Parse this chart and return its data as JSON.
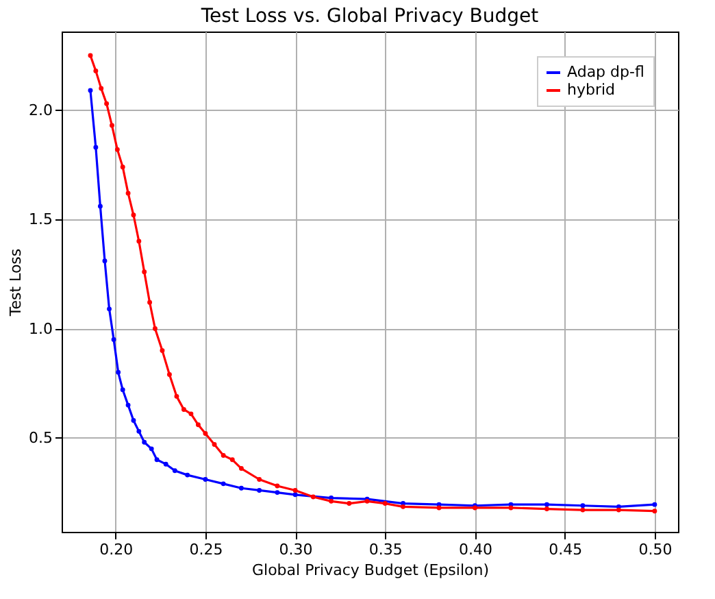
{
  "chart_data": {
    "type": "line",
    "title": "Test Loss vs. Global Privacy Budget",
    "xlabel": "Global Privacy Budget (Epsilon)",
    "ylabel": "Test Loss",
    "xlim": [
      0.17,
      0.513
    ],
    "xticks": [
      {
        "value": 0.2,
        "label": "0.20"
      },
      {
        "value": 0.25,
        "label": "0.25"
      },
      {
        "value": 0.3,
        "label": "0.30"
      },
      {
        "value": 0.35,
        "label": "0.35"
      },
      {
        "value": 0.4,
        "label": "0.40"
      },
      {
        "value": 0.45,
        "label": "0.45"
      },
      {
        "value": 0.5,
        "label": "0.50"
      }
    ],
    "ylim": [
      0.07,
      2.36
    ],
    "yticks": [
      {
        "value": 0.5,
        "label": "0.5"
      },
      {
        "value": 1,
        "label": "1.0"
      },
      {
        "value": 1.5,
        "label": "1.5"
      },
      {
        "value": 2,
        "label": "2.0"
      }
    ],
    "grid": true,
    "legend": "top right",
    "marker": "circle",
    "line_style": "solid",
    "series": [
      {
        "name": "Adap dp-fl",
        "color": "#0000ff",
        "x": [
          0.186,
          0.189,
          0.1915,
          0.194,
          0.1965,
          0.199,
          0.2015,
          0.204,
          0.207,
          0.21,
          0.213,
          0.216,
          0.22,
          0.223,
          0.228,
          0.233,
          0.24,
          0.25,
          0.26,
          0.27,
          0.28,
          0.29,
          0.3,
          0.32,
          0.34,
          0.36,
          0.38,
          0.4,
          0.42,
          0.44,
          0.46,
          0.48,
          0.5
        ],
        "values": [
          2.09,
          1.83,
          1.56,
          1.31,
          1.09,
          0.95,
          0.8,
          0.72,
          0.65,
          0.58,
          0.53,
          0.48,
          0.45,
          0.4,
          0.38,
          0.35,
          0.33,
          0.31,
          0.29,
          0.27,
          0.26,
          0.25,
          0.24,
          0.225,
          0.22,
          0.2,
          0.195,
          0.19,
          0.195,
          0.195,
          0.19,
          0.185,
          0.195
        ]
      },
      {
        "name": "hybrid",
        "color": "#ff0000",
        "x": [
          0.186,
          0.189,
          0.192,
          0.195,
          0.198,
          0.201,
          0.204,
          0.207,
          0.21,
          0.213,
          0.216,
          0.219,
          0.222,
          0.226,
          0.23,
          0.234,
          0.238,
          0.242,
          0.246,
          0.25,
          0.255,
          0.26,
          0.265,
          0.27,
          0.28,
          0.29,
          0.3,
          0.31,
          0.32,
          0.33,
          0.34,
          0.35,
          0.36,
          0.38,
          0.4,
          0.42,
          0.44,
          0.46,
          0.48,
          0.5
        ],
        "values": [
          2.25,
          2.18,
          2.1,
          2.03,
          1.93,
          1.82,
          1.74,
          1.62,
          1.52,
          1.4,
          1.26,
          1.12,
          1.0,
          0.9,
          0.79,
          0.69,
          0.63,
          0.61,
          0.56,
          0.52,
          0.47,
          0.42,
          0.4,
          0.36,
          0.31,
          0.28,
          0.26,
          0.23,
          0.21,
          0.2,
          0.21,
          0.2,
          0.185,
          0.18,
          0.18,
          0.18,
          0.175,
          0.17,
          0.17,
          0.165
        ]
      }
    ]
  }
}
